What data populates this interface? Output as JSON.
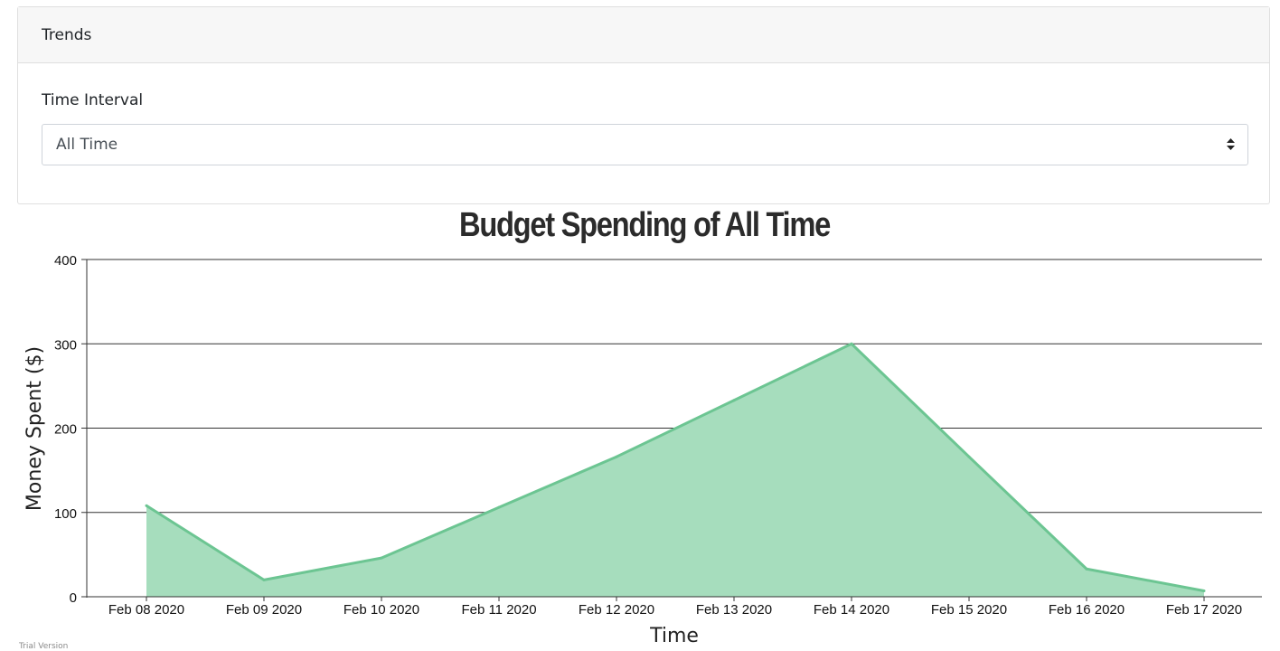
{
  "panel": {
    "header": "Trends",
    "field_label": "Time Interval",
    "select_value": "All Time"
  },
  "colors": {
    "area_fill": "#a6ddbd",
    "area_line": "#6cc592",
    "grid": "#333333"
  },
  "chart_data": {
    "type": "area",
    "title": "Budget Spending of All Time",
    "xlabel": "Time",
    "ylabel": "Money Spent ($)",
    "ylim": [
      0,
      400
    ],
    "yticks": [
      0,
      100,
      200,
      300,
      400
    ],
    "grid": true,
    "categories": [
      "Feb 08 2020",
      "Feb 09 2020",
      "Feb 10 2020",
      "Feb 11 2020",
      "Feb 12 2020",
      "Feb 13 2020",
      "Feb 14 2020",
      "Feb 15 2020",
      "Feb 16 2020",
      "Feb 17 2020"
    ],
    "series": [
      {
        "values": [
          108,
          20,
          46,
          106,
          166,
          233,
          300,
          166,
          33,
          7
        ]
      }
    ]
  },
  "footer": "Trial Version"
}
